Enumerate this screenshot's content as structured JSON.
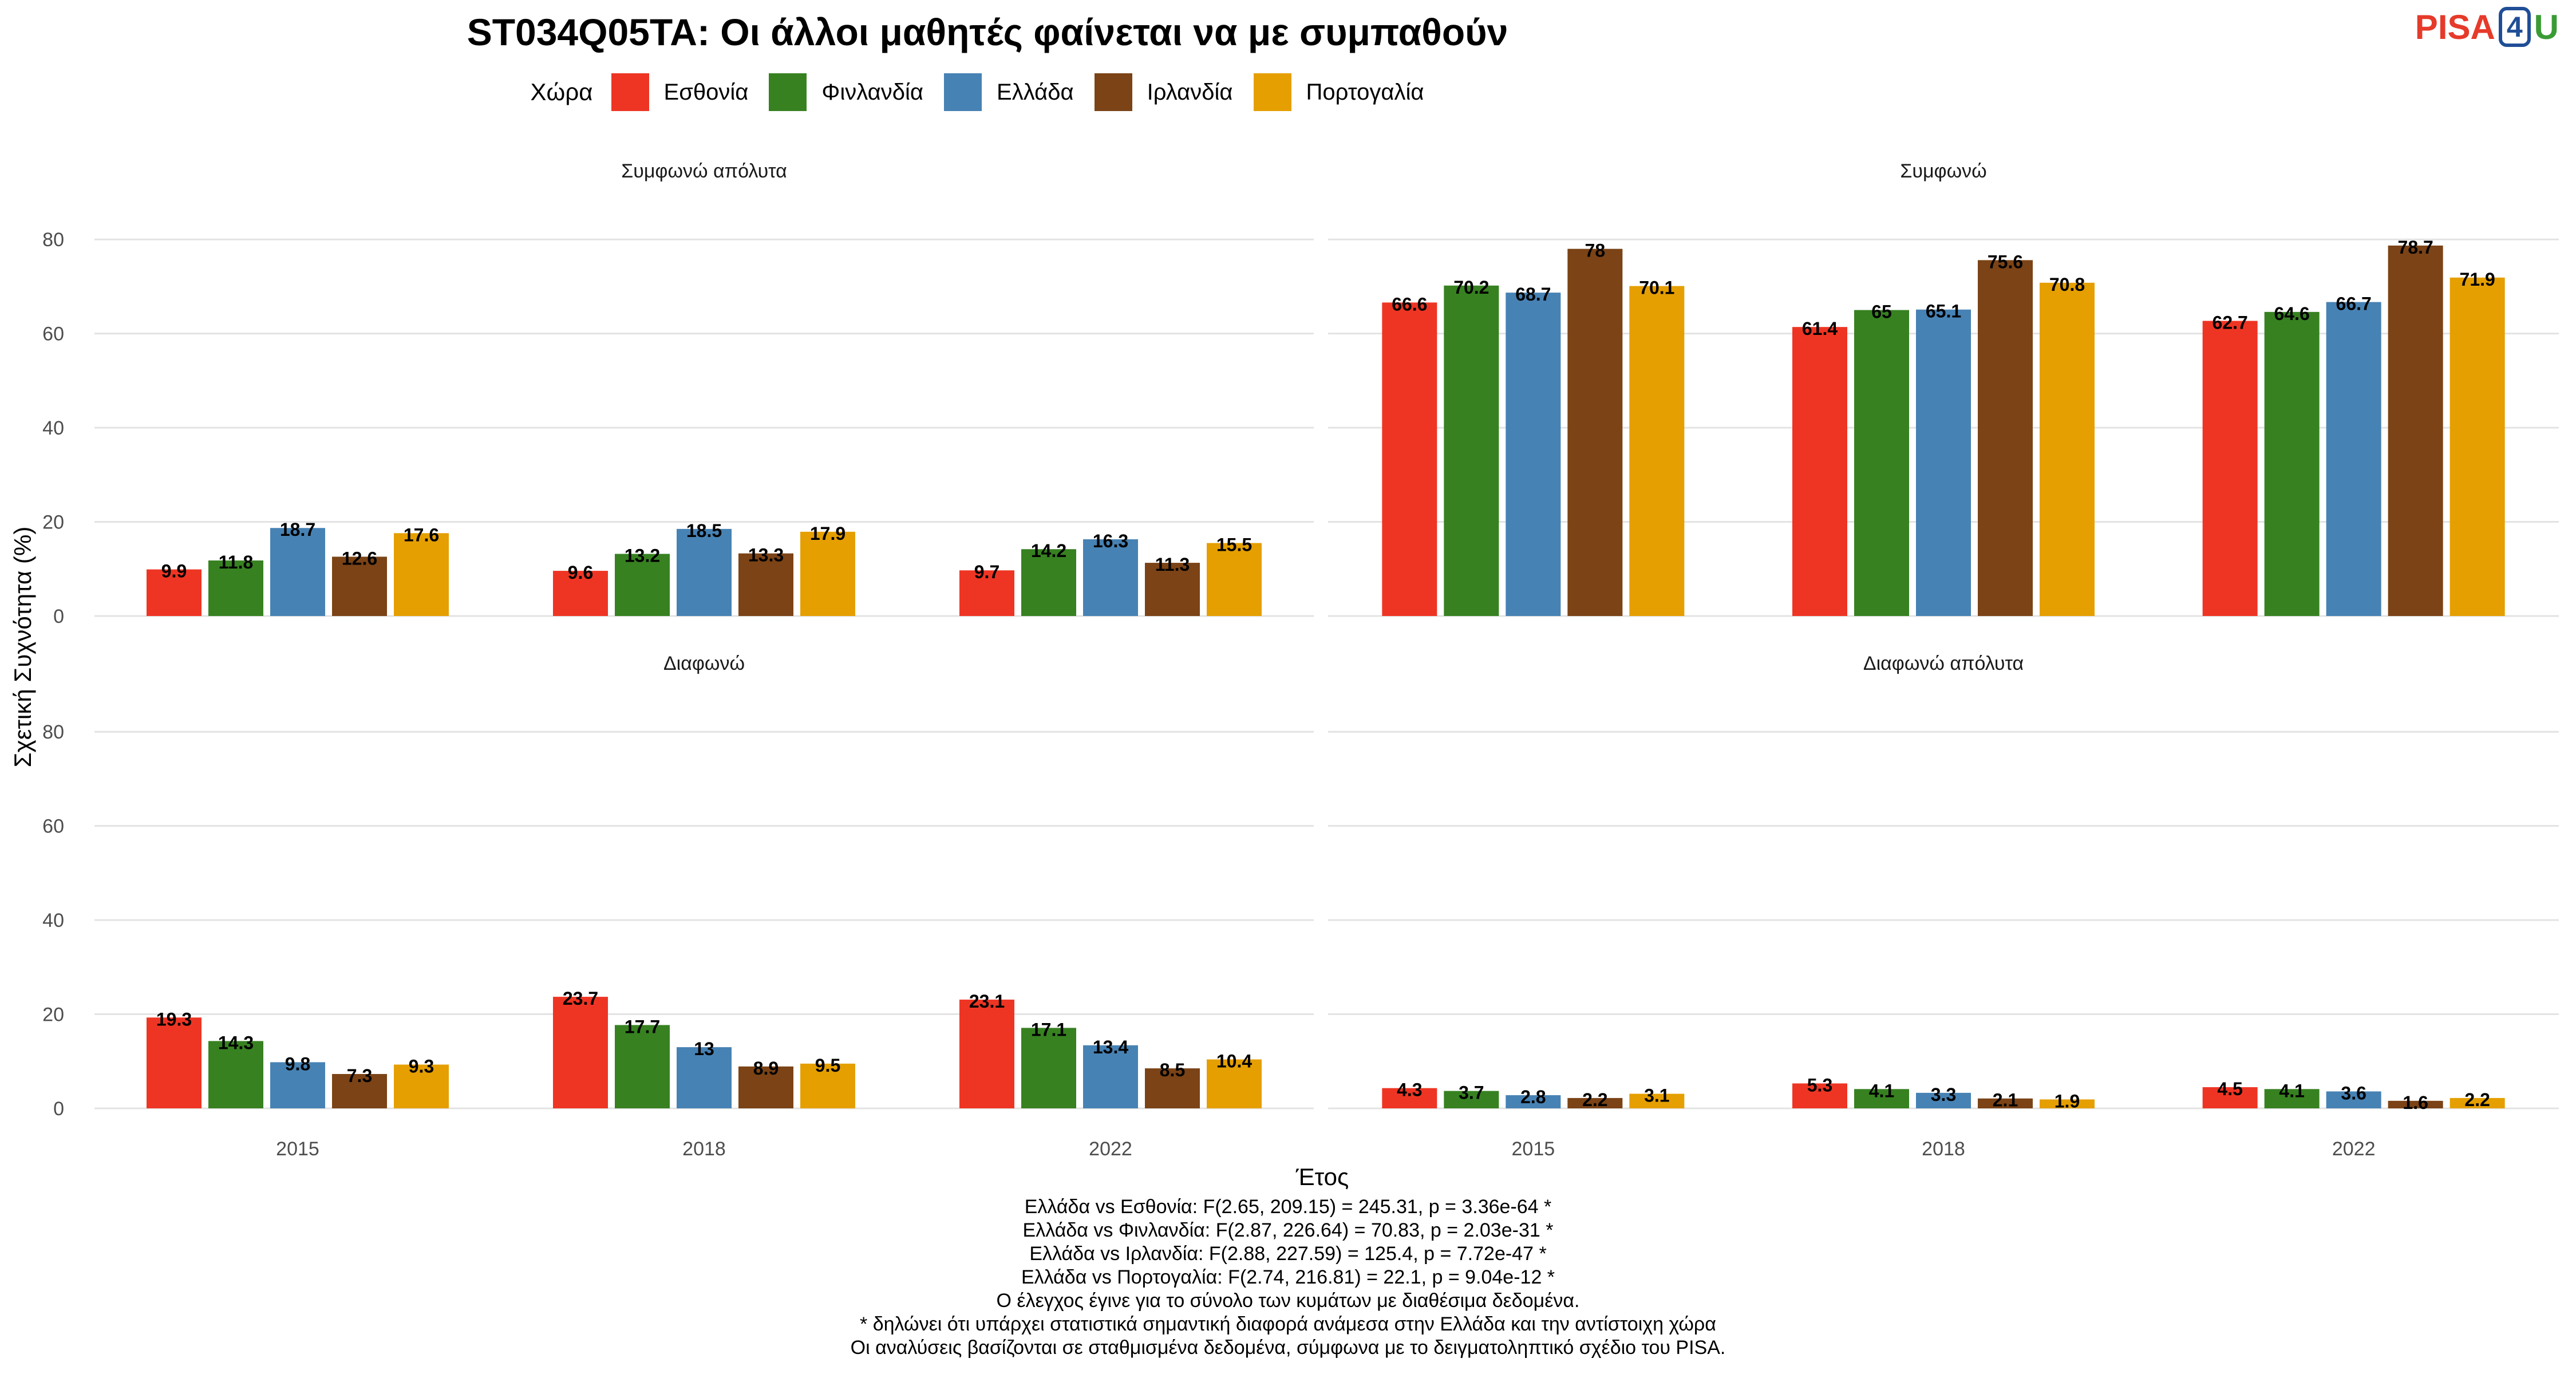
{
  "title": "ST034Q05TA: Οι άλλοι μαθητές φαίνεται να με συμπαθούν",
  "logo": {
    "pisa": "PISA",
    "four": "4",
    "u": "U"
  },
  "legend_title": "Χώρα",
  "chart_data": {
    "type": "bar",
    "xlabel": "Έτος",
    "ylabel": "Σχετική Συχνότητα (%)",
    "ylim": [
      0,
      90
    ],
    "y_ticks": [
      "0",
      "20",
      "40",
      "60",
      "80"
    ],
    "categories": [
      "2015",
      "2018",
      "2022"
    ],
    "grid": true,
    "legend_position": "top",
    "series_names": [
      "Εσθονία",
      "Φινλανδία",
      "Ελλάδα",
      "Ιρλανδία",
      "Πορτογαλία"
    ],
    "series_colors": [
      "#ee3524",
      "#378121",
      "#4782b4",
      "#7b4316",
      "#e59f00"
    ],
    "panels": [
      {
        "name": "Συμφωνώ απόλυτα",
        "values": [
          [
            9.9,
            9.6,
            9.7
          ],
          [
            11.8,
            13.2,
            14.2
          ],
          [
            18.7,
            18.5,
            16.3
          ],
          [
            12.6,
            13.3,
            11.3
          ],
          [
            17.6,
            17.9,
            15.5
          ]
        ]
      },
      {
        "name": "Συμφωνώ",
        "values": [
          [
            66.6,
            61.4,
            62.7
          ],
          [
            70.2,
            65,
            64.6
          ],
          [
            68.7,
            65.1,
            66.7
          ],
          [
            78,
            75.6,
            78.7
          ],
          [
            70.1,
            70.8,
            71.9
          ]
        ]
      },
      {
        "name": "Διαφωνώ",
        "values": [
          [
            19.3,
            23.7,
            23.1
          ],
          [
            14.3,
            17.7,
            17.1
          ],
          [
            9.8,
            13,
            13.4
          ],
          [
            7.3,
            8.9,
            8.5
          ],
          [
            9.3,
            9.5,
            10.4
          ]
        ]
      },
      {
        "name": "Διαφωνώ απόλυτα",
        "values": [
          [
            4.3,
            5.3,
            4.5
          ],
          [
            3.7,
            4.1,
            4.1
          ],
          [
            2.8,
            3.3,
            3.6
          ],
          [
            2.2,
            2.1,
            1.6
          ],
          [
            3.1,
            1.9,
            2.2
          ]
        ]
      }
    ]
  },
  "notes": [
    "Ελλάδα vs Εσθονία: F(2.65, 209.15) = 245.31, p = 3.36e-64 *",
    "Ελλάδα vs Φινλανδία: F(2.87, 226.64) = 70.83, p = 2.03e-31 *",
    "Ελλάδα vs Ιρλανδία: F(2.88, 227.59) = 125.4, p = 7.72e-47 *",
    "Ελλάδα vs Πορτογαλία: F(2.74, 216.81) = 22.1, p = 9.04e-12 *",
    "Ο έλεγχος έγινε για το σύνολο των κυμάτων με διαθέσιμα δεδομένα.",
    "* δηλώνει ότι υπάρχει στατιστικά σημαντική διαφορά ανάμεσα στην Ελλάδα και την αντίστοιχη χώρα",
    "Οι αναλύσεις βασίζονται σε σταθμισμένα δεδομένα, σύμφωνα με το δειγματοληπτικό σχέδιο του PISA."
  ]
}
